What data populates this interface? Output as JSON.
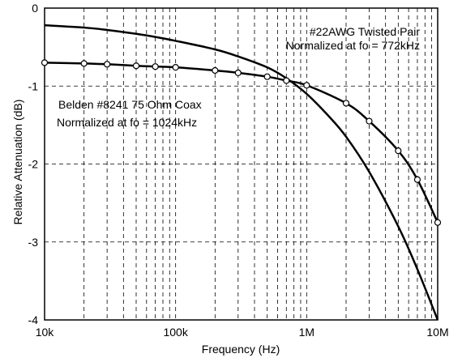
{
  "chart_data": {
    "type": "line",
    "xlabel": "Frequency (Hz)",
    "ylabel": "Relative Attenuation (dB)",
    "x_scale": "log",
    "xlim": [
      10000,
      10000000
    ],
    "ylim": [
      -4,
      0
    ],
    "grid": true,
    "x_ticks": [
      {
        "value": 10000,
        "label": "10k"
      },
      {
        "value": 100000,
        "label": "100k"
      },
      {
        "value": 1000000,
        "label": "1M"
      },
      {
        "value": 10000000,
        "label": "10M"
      }
    ],
    "y_ticks": [
      {
        "value": 0,
        "label": "0"
      },
      {
        "value": -1,
        "label": "-1"
      },
      {
        "value": -2,
        "label": "-2"
      },
      {
        "value": -3,
        "label": "-3"
      },
      {
        "value": -4,
        "label": "-4"
      }
    ],
    "annotations": [
      {
        "id": "twisted-pair",
        "lines": [
          "#22AWG Twisted Pair",
          "Normalized at fo = 772kHz"
        ]
      },
      {
        "id": "coax",
        "lines": [
          "Belden #8241 75 Ohm Coax",
          "Normalized at fo = 1024kHz"
        ]
      }
    ],
    "series": [
      {
        "marker": "none",
        "x": [
          10000,
          20000,
          30000,
          50000,
          70000,
          100000,
          200000,
          300000,
          500000,
          700000,
          1000000,
          1500000,
          2000000,
          3000000,
          5000000,
          7000000,
          10000000
        ],
        "y": [
          -0.22,
          -0.25,
          -0.28,
          -0.33,
          -0.37,
          -0.42,
          -0.53,
          -0.62,
          -0.76,
          -0.9,
          -1.1,
          -1.4,
          -1.65,
          -2.1,
          -2.8,
          -3.35,
          -4.0
        ]
      },
      {
        "marker": "circle",
        "x": [
          10000,
          20000,
          30000,
          50000,
          70000,
          100000,
          200000,
          300000,
          500000,
          700000,
          1000000,
          2000000,
          3000000,
          5000000,
          7000000,
          10000000
        ],
        "y": [
          -0.7,
          -0.71,
          -0.72,
          -0.74,
          -0.75,
          -0.76,
          -0.8,
          -0.83,
          -0.88,
          -0.93,
          -0.99,
          -1.22,
          -1.45,
          -1.83,
          -2.2,
          -2.75
        ]
      }
    ]
  }
}
